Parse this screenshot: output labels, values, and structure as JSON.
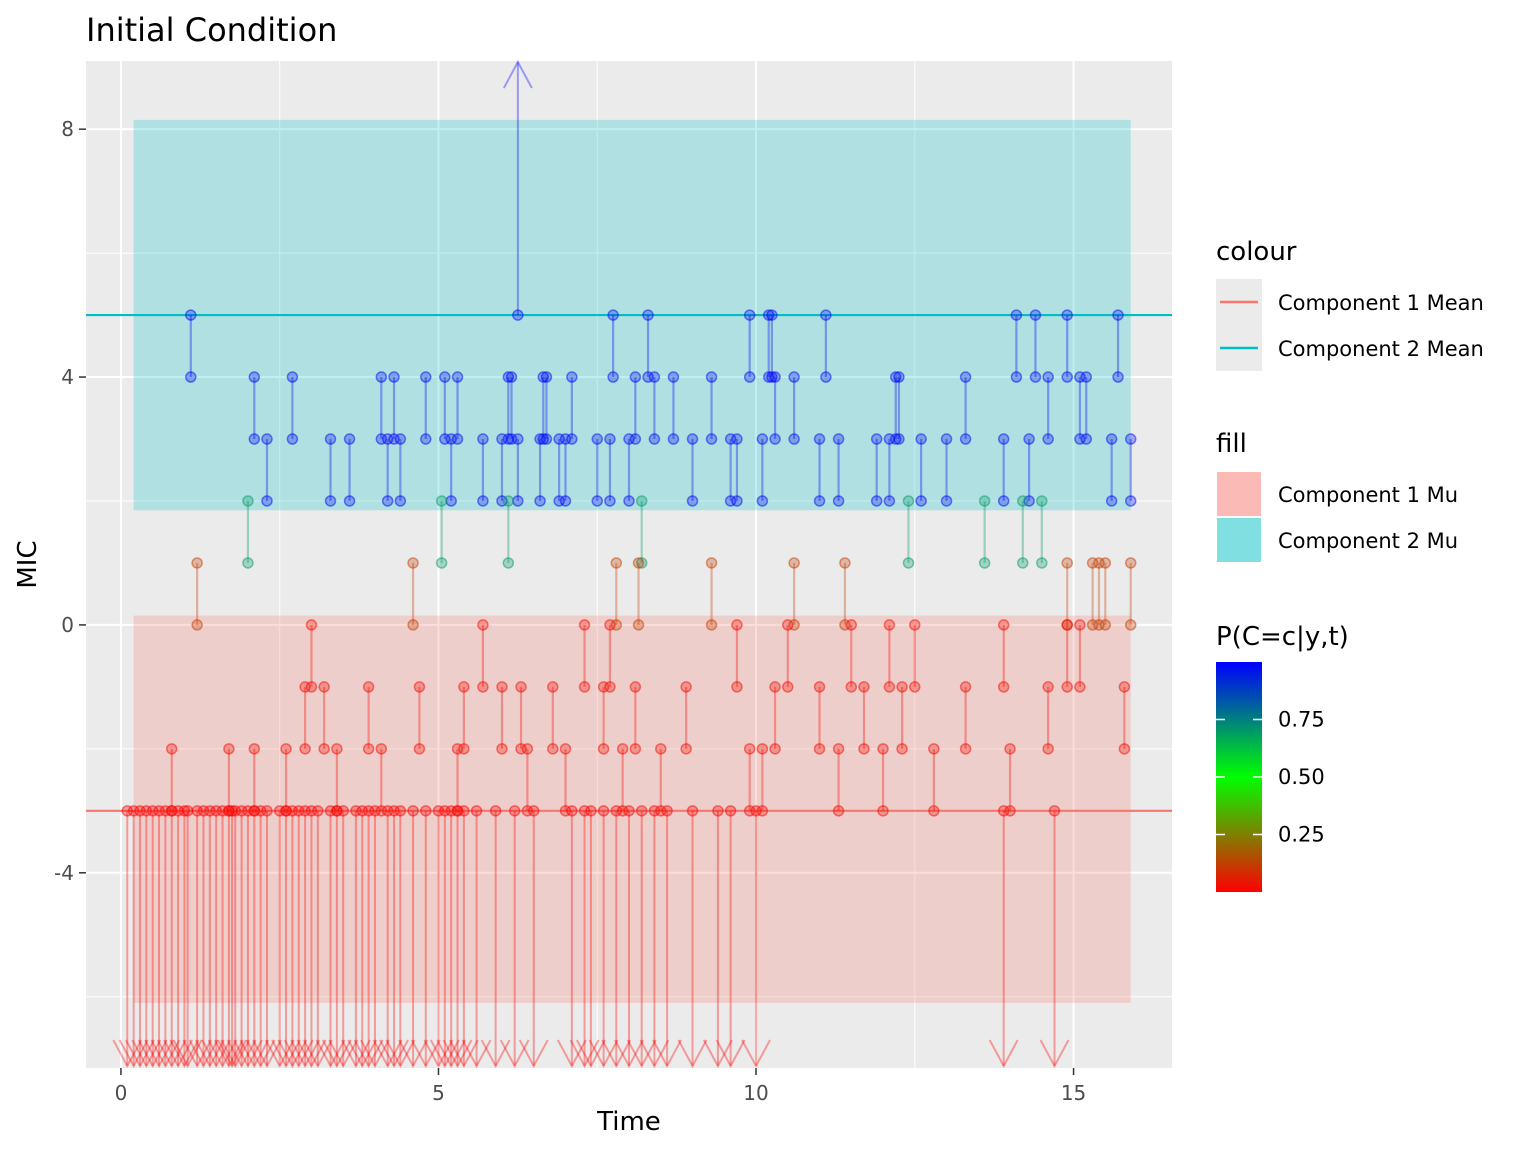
{
  "chart_data": {
    "type": "scatter",
    "title": "Initial Condition",
    "xlabel": "Time",
    "ylabel": "MIC",
    "xlim": [
      -0.55,
      16.55
    ],
    "ylim": [
      -7.15,
      9.1
    ],
    "x_ticks": [
      0,
      5,
      10,
      15
    ],
    "y_ticks": [
      -4,
      0,
      4,
      8
    ],
    "grid": true,
    "legend_position": "right",
    "lines": [
      {
        "name": "Component 1 Mean",
        "y": -3,
        "color": "#F8766D"
      },
      {
        "name": "Component 2 Mean",
        "y": 5,
        "color": "#00BFC4"
      }
    ],
    "bands": [
      {
        "name": "Component 1 Mu",
        "x": [
          0.2,
          15.9
        ],
        "y": [
          -6.1,
          0.15
        ],
        "color": "#F8766D"
      },
      {
        "name": "Component 2 Mu",
        "x": [
          0.2,
          15.9
        ],
        "y": [
          1.85,
          8.15
        ],
        "color": "#00BFC4"
      }
    ],
    "censored_down_times": [
      0.1,
      0.2,
      0.3,
      0.4,
      0.5,
      0.6,
      0.7,
      0.8,
      0.9,
      1.0,
      1.05,
      1.2,
      1.3,
      1.4,
      1.5,
      1.6,
      1.7,
      1.75,
      1.8,
      1.9,
      2.0,
      2.1,
      2.2,
      2.3,
      2.5,
      2.6,
      2.7,
      2.8,
      2.9,
      3.0,
      3.1,
      3.3,
      3.4,
      3.5,
      3.7,
      3.8,
      3.9,
      4.0,
      4.2,
      4.3,
      4.4,
      4.6,
      4.8,
      5.0,
      5.1,
      5.2,
      5.3,
      5.4,
      5.6,
      5.9,
      6.2,
      6.5,
      7.1,
      7.3,
      7.4,
      7.6,
      7.8,
      8.0,
      8.2,
      8.4,
      8.6,
      9.0,
      9.4,
      9.6,
      10.0,
      13.9,
      14.7
    ],
    "censored_up": [
      {
        "x": 6.25,
        "y": 5
      }
    ],
    "intervals": [
      {
        "x": 1.1,
        "low": 4,
        "high": 5,
        "p": 0.99
      },
      {
        "x": 2.1,
        "low": 3,
        "high": 4,
        "p": 0.99
      },
      {
        "x": 2.3,
        "low": 2,
        "high": 3,
        "p": 0.99
      },
      {
        "x": 2.7,
        "low": 3,
        "high": 4,
        "p": 0.99
      },
      {
        "x": 3.3,
        "low": 2,
        "high": 3,
        "p": 0.99
      },
      {
        "x": 3.6,
        "low": 2,
        "high": 3,
        "p": 0.99
      },
      {
        "x": 4.1,
        "low": 3,
        "high": 4,
        "p": 0.99
      },
      {
        "x": 4.2,
        "low": 2,
        "high": 3,
        "p": 0.99
      },
      {
        "x": 4.3,
        "low": 3,
        "high": 4,
        "p": 0.99
      },
      {
        "x": 4.4,
        "low": 2,
        "high": 3,
        "p": 0.99
      },
      {
        "x": 4.8,
        "low": 3,
        "high": 4,
        "p": 0.99
      },
      {
        "x": 5.1,
        "low": 3,
        "high": 4,
        "p": 0.99
      },
      {
        "x": 5.2,
        "low": 2,
        "high": 3,
        "p": 0.99
      },
      {
        "x": 5.3,
        "low": 3,
        "high": 4,
        "p": 0.99
      },
      {
        "x": 5.7,
        "low": 2,
        "high": 3,
        "p": 0.99
      },
      {
        "x": 6.0,
        "low": 2,
        "high": 3,
        "p": 0.99
      },
      {
        "x": 6.1,
        "low": 3,
        "high": 4,
        "p": 0.99
      },
      {
        "x": 6.15,
        "low": 3,
        "high": 4,
        "p": 0.99
      },
      {
        "x": 6.25,
        "low": 2,
        "high": 3,
        "p": 0.99
      },
      {
        "x": 6.6,
        "low": 2,
        "high": 3,
        "p": 0.99
      },
      {
        "x": 6.65,
        "low": 3,
        "high": 4,
        "p": 0.99
      },
      {
        "x": 6.7,
        "low": 3,
        "high": 4,
        "p": 0.99
      },
      {
        "x": 6.9,
        "low": 2,
        "high": 3,
        "p": 0.99
      },
      {
        "x": 7.0,
        "low": 2,
        "high": 3,
        "p": 0.99
      },
      {
        "x": 7.1,
        "low": 3,
        "high": 4,
        "p": 0.99
      },
      {
        "x": 7.5,
        "low": 2,
        "high": 3,
        "p": 0.99
      },
      {
        "x": 7.7,
        "low": 2,
        "high": 3,
        "p": 0.99
      },
      {
        "x": 7.75,
        "low": 4,
        "high": 5,
        "p": 0.99
      },
      {
        "x": 8.0,
        "low": 2,
        "high": 3,
        "p": 0.99
      },
      {
        "x": 8.1,
        "low": 3,
        "high": 4,
        "p": 0.99
      },
      {
        "x": 8.3,
        "low": 4,
        "high": 5,
        "p": 0.99
      },
      {
        "x": 8.4,
        "low": 3,
        "high": 4,
        "p": 0.99
      },
      {
        "x": 8.7,
        "low": 3,
        "high": 4,
        "p": 0.99
      },
      {
        "x": 9.0,
        "low": 2,
        "high": 3,
        "p": 0.99
      },
      {
        "x": 9.3,
        "low": 3,
        "high": 4,
        "p": 0.99
      },
      {
        "x": 9.6,
        "low": 2,
        "high": 3,
        "p": 0.99
      },
      {
        "x": 9.7,
        "low": 2,
        "high": 3,
        "p": 0.99
      },
      {
        "x": 9.9,
        "low": 4,
        "high": 5,
        "p": 0.99
      },
      {
        "x": 10.1,
        "low": 2,
        "high": 3,
        "p": 0.99
      },
      {
        "x": 10.2,
        "low": 4,
        "high": 5,
        "p": 0.99
      },
      {
        "x": 10.25,
        "low": 4,
        "high": 5,
        "p": 0.99
      },
      {
        "x": 10.3,
        "low": 3,
        "high": 4,
        "p": 0.99
      },
      {
        "x": 10.6,
        "low": 3,
        "high": 4,
        "p": 0.99
      },
      {
        "x": 11.0,
        "low": 2,
        "high": 3,
        "p": 0.99
      },
      {
        "x": 11.1,
        "low": 4,
        "high": 5,
        "p": 0.99
      },
      {
        "x": 11.3,
        "low": 2,
        "high": 3,
        "p": 0.99
      },
      {
        "x": 11.9,
        "low": 2,
        "high": 3,
        "p": 0.99
      },
      {
        "x": 12.1,
        "low": 2,
        "high": 3,
        "p": 0.99
      },
      {
        "x": 12.2,
        "low": 3,
        "high": 4,
        "p": 0.99
      },
      {
        "x": 12.25,
        "low": 3,
        "high": 4,
        "p": 0.99
      },
      {
        "x": 12.6,
        "low": 2,
        "high": 3,
        "p": 0.99
      },
      {
        "x": 13.0,
        "low": 2,
        "high": 3,
        "p": 0.99
      },
      {
        "x": 13.3,
        "low": 3,
        "high": 4,
        "p": 0.99
      },
      {
        "x": 13.9,
        "low": 2,
        "high": 3,
        "p": 0.99
      },
      {
        "x": 14.1,
        "low": 4,
        "high": 5,
        "p": 0.99
      },
      {
        "x": 14.3,
        "low": 2,
        "high": 3,
        "p": 0.99
      },
      {
        "x": 14.4,
        "low": 4,
        "high": 5,
        "p": 0.99
      },
      {
        "x": 14.6,
        "low": 3,
        "high": 4,
        "p": 0.99
      },
      {
        "x": 14.9,
        "low": 4,
        "high": 5,
        "p": 0.99
      },
      {
        "x": 15.1,
        "low": 3,
        "high": 4,
        "p": 0.99
      },
      {
        "x": 15.2,
        "low": 3,
        "high": 4,
        "p": 0.99
      },
      {
        "x": 15.6,
        "low": 2,
        "high": 3,
        "p": 0.99
      },
      {
        "x": 15.7,
        "low": 4,
        "high": 5,
        "p": 0.99
      },
      {
        "x": 15.9,
        "low": 2,
        "high": 3,
        "p": 0.99
      },
      {
        "x": 2.0,
        "low": 1,
        "high": 2,
        "p": 0.7
      },
      {
        "x": 5.05,
        "low": 1,
        "high": 2,
        "p": 0.7
      },
      {
        "x": 6.1,
        "low": 1,
        "high": 2,
        "p": 0.7
      },
      {
        "x": 8.2,
        "low": 1,
        "high": 2,
        "p": 0.7
      },
      {
        "x": 12.4,
        "low": 1,
        "high": 2,
        "p": 0.7
      },
      {
        "x": 13.6,
        "low": 1,
        "high": 2,
        "p": 0.7
      },
      {
        "x": 14.2,
        "low": 1,
        "high": 2,
        "p": 0.7
      },
      {
        "x": 14.5,
        "low": 1,
        "high": 2,
        "p": 0.7
      },
      {
        "x": 1.2,
        "low": 0,
        "high": 1,
        "p": 0.12
      },
      {
        "x": 4.6,
        "low": 0,
        "high": 1,
        "p": 0.12
      },
      {
        "x": 7.8,
        "low": 0,
        "high": 1,
        "p": 0.12
      },
      {
        "x": 8.15,
        "low": 0,
        "high": 1,
        "p": 0.12
      },
      {
        "x": 9.3,
        "low": 0,
        "high": 1,
        "p": 0.12
      },
      {
        "x": 10.6,
        "low": 0,
        "high": 1,
        "p": 0.12
      },
      {
        "x": 11.4,
        "low": 0,
        "high": 1,
        "p": 0.12
      },
      {
        "x": 14.9,
        "low": 0,
        "high": 1,
        "p": 0.12
      },
      {
        "x": 15.3,
        "low": 0,
        "high": 1,
        "p": 0.12
      },
      {
        "x": 15.4,
        "low": 0,
        "high": 1,
        "p": 0.12
      },
      {
        "x": 15.5,
        "low": 0,
        "high": 1,
        "p": 0.12
      },
      {
        "x": 15.9,
        "low": 0,
        "high": 1,
        "p": 0.12
      },
      {
        "x": 3.0,
        "low": -1,
        "high": 0,
        "p": 0.02
      },
      {
        "x": 5.7,
        "low": -1,
        "high": 0,
        "p": 0.02
      },
      {
        "x": 7.3,
        "low": -1,
        "high": 0,
        "p": 0.02
      },
      {
        "x": 7.7,
        "low": -1,
        "high": 0,
        "p": 0.02
      },
      {
        "x": 9.7,
        "low": -1,
        "high": 0,
        "p": 0.02
      },
      {
        "x": 10.5,
        "low": -1,
        "high": 0,
        "p": 0.02
      },
      {
        "x": 11.5,
        "low": -1,
        "high": 0,
        "p": 0.02
      },
      {
        "x": 12.1,
        "low": -1,
        "high": 0,
        "p": 0.02
      },
      {
        "x": 12.5,
        "low": -1,
        "high": 0,
        "p": 0.02
      },
      {
        "x": 13.9,
        "low": -1,
        "high": 0,
        "p": 0.02
      },
      {
        "x": 14.9,
        "low": -1,
        "high": 0,
        "p": 0.02
      },
      {
        "x": 15.1,
        "low": -1,
        "high": 0,
        "p": 0.02
      },
      {
        "x": 2.9,
        "low": -2,
        "high": -1,
        "p": 0.02
      },
      {
        "x": 3.2,
        "low": -2,
        "high": -1,
        "p": 0.02
      },
      {
        "x": 3.9,
        "low": -2,
        "high": -1,
        "p": 0.02
      },
      {
        "x": 4.7,
        "low": -2,
        "high": -1,
        "p": 0.02
      },
      {
        "x": 5.4,
        "low": -2,
        "high": -1,
        "p": 0.02
      },
      {
        "x": 6.0,
        "low": -2,
        "high": -1,
        "p": 0.02
      },
      {
        "x": 6.3,
        "low": -2,
        "high": -1,
        "p": 0.02
      },
      {
        "x": 6.8,
        "low": -2,
        "high": -1,
        "p": 0.02
      },
      {
        "x": 7.6,
        "low": -2,
        "high": -1,
        "p": 0.02
      },
      {
        "x": 8.1,
        "low": -2,
        "high": -1,
        "p": 0.02
      },
      {
        "x": 8.9,
        "low": -2,
        "high": -1,
        "p": 0.02
      },
      {
        "x": 10.3,
        "low": -2,
        "high": -1,
        "p": 0.02
      },
      {
        "x": 11.0,
        "low": -2,
        "high": -1,
        "p": 0.02
      },
      {
        "x": 11.7,
        "low": -2,
        "high": -1,
        "p": 0.02
      },
      {
        "x": 12.3,
        "low": -2,
        "high": -1,
        "p": 0.02
      },
      {
        "x": 13.3,
        "low": -2,
        "high": -1,
        "p": 0.02
      },
      {
        "x": 14.6,
        "low": -2,
        "high": -1,
        "p": 0.02
      },
      {
        "x": 15.8,
        "low": -2,
        "high": -1,
        "p": 0.02
      },
      {
        "x": 0.8,
        "low": -3,
        "high": -2,
        "p": 0.02
      },
      {
        "x": 1.7,
        "low": -3,
        "high": -2,
        "p": 0.02
      },
      {
        "x": 2.1,
        "low": -3,
        "high": -2,
        "p": 0.02
      },
      {
        "x": 2.6,
        "low": -3,
        "high": -2,
        "p": 0.02
      },
      {
        "x": 3.4,
        "low": -3,
        "high": -2,
        "p": 0.02
      },
      {
        "x": 4.1,
        "low": -3,
        "high": -2,
        "p": 0.02
      },
      {
        "x": 5.3,
        "low": -3,
        "high": -2,
        "p": 0.02
      },
      {
        "x": 6.4,
        "low": -3,
        "high": -2,
        "p": 0.02
      },
      {
        "x": 7.0,
        "low": -3,
        "high": -2,
        "p": 0.02
      },
      {
        "x": 7.9,
        "low": -3,
        "high": -2,
        "p": 0.02
      },
      {
        "x": 8.5,
        "low": -3,
        "high": -2,
        "p": 0.02
      },
      {
        "x": 9.9,
        "low": -3,
        "high": -2,
        "p": 0.02
      },
      {
        "x": 10.1,
        "low": -3,
        "high": -2,
        "p": 0.02
      },
      {
        "x": 11.3,
        "low": -3,
        "high": -2,
        "p": 0.02
      },
      {
        "x": 12.0,
        "low": -3,
        "high": -2,
        "p": 0.02
      },
      {
        "x": 12.8,
        "low": -3,
        "high": -2,
        "p": 0.02
      },
      {
        "x": 14.0,
        "low": -3,
        "high": -2,
        "p": 0.02
      }
    ],
    "legend": {
      "colour": {
        "title": "colour",
        "items": [
          "Component 1 Mean",
          "Component 2 Mean"
        ]
      },
      "fill": {
        "title": "fill",
        "items": [
          "Component 1 Mu",
          "Component 2 Mu"
        ]
      },
      "gradient": {
        "title": "P(C=c|y,t)",
        "ticks": [
          0.25,
          0.5,
          0.75
        ],
        "tick_labels": [
          "0.25",
          "0.50",
          "0.75"
        ],
        "range": [
          0.0,
          1.0
        ],
        "colors": [
          "#FF0000",
          "#00FF00",
          "#0000FF"
        ]
      }
    }
  }
}
